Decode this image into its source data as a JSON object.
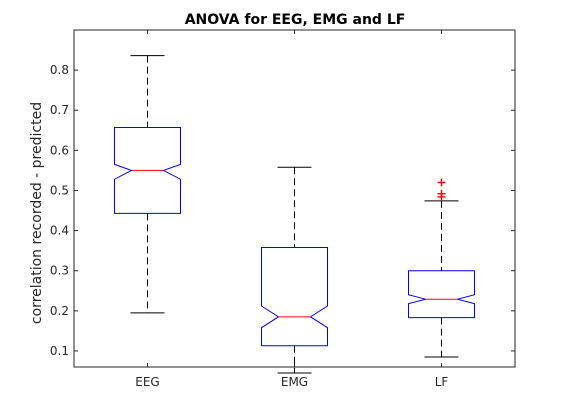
{
  "chart_data": {
    "type": "boxplot",
    "title": "ANOVA for EEG, EMG and LF",
    "xlabel": "",
    "ylabel": "correlation recorded - predicted",
    "ylim": [
      0.06,
      0.9
    ],
    "yticks": [
      0.1,
      0.2,
      0.3,
      0.4,
      0.5,
      0.6,
      0.7,
      0.8
    ],
    "ytick_labels": [
      "0.1",
      "0.2",
      "0.3",
      "0.4",
      "0.5",
      "0.6",
      "0.7",
      "0.8"
    ],
    "categories": [
      "EEG",
      "EMG",
      "LF"
    ],
    "notched": true,
    "grid": false,
    "colors": {
      "box": "#0000ff",
      "median": "#ff0000",
      "whisker": "#000000",
      "outlier": "#ff0000",
      "axis": "#262626"
    },
    "boxes": [
      {
        "name": "EEG",
        "whisker_low": 0.195,
        "q1": 0.443,
        "median": 0.55,
        "q3": 0.657,
        "whisker_high": 0.836,
        "notch_low": 0.528,
        "notch_high": 0.565,
        "outliers": []
      },
      {
        "name": "EMG",
        "whisker_low": 0.045,
        "q1": 0.113,
        "median": 0.185,
        "q3": 0.358,
        "whisker_high": 0.558,
        "notch_low": 0.158,
        "notch_high": 0.212,
        "outliers": []
      },
      {
        "name": "LF",
        "whisker_low": 0.085,
        "q1": 0.183,
        "median": 0.229,
        "q3": 0.3,
        "whisker_high": 0.474,
        "notch_low": 0.218,
        "notch_high": 0.24,
        "outliers": [
          0.52,
          0.492,
          0.484
        ]
      }
    ]
  }
}
